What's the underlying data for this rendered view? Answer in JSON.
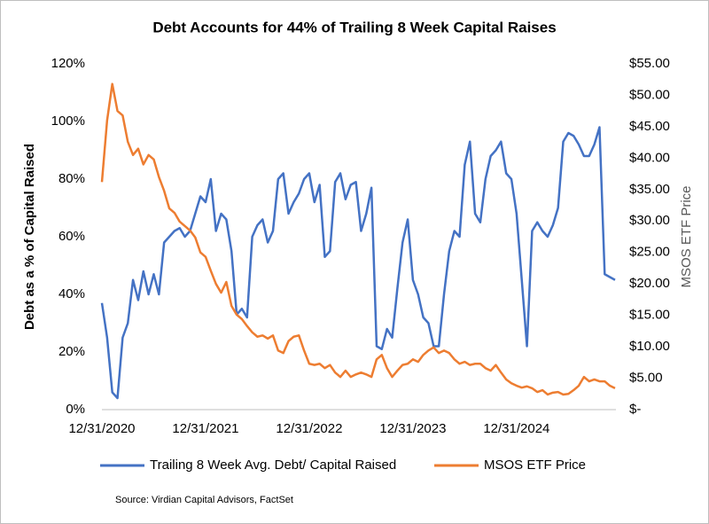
{
  "chart_data": {
    "type": "line",
    "title": "Debt Accounts for 44% of Trailing 8 Week Capital Raises",
    "y_label": "Debt as a % of Capital Raised",
    "y2_label": "MSOS ETF Price",
    "source": "Source: Virdian Capital Advisors, FactSet",
    "x": [
      2021,
      2021.05,
      2021.1,
      2021.15,
      2021.2,
      2021.25,
      2021.3,
      2021.35,
      2021.4,
      2021.45,
      2021.5,
      2021.55,
      2021.6,
      2021.65,
      2021.7,
      2021.75,
      2021.8,
      2021.85,
      2021.9,
      2021.95,
      2022,
      2022.05,
      2022.1,
      2022.15,
      2022.2,
      2022.25,
      2022.3,
      2022.35,
      2022.4,
      2022.45,
      2022.5,
      2022.55,
      2022.6,
      2022.65,
      2022.7,
      2022.75,
      2022.8,
      2022.85,
      2022.9,
      2022.95,
      2023,
      2023.05,
      2023.1,
      2023.15,
      2023.2,
      2023.25,
      2023.3,
      2023.35,
      2023.4,
      2023.45,
      2023.5,
      2023.55,
      2023.6,
      2023.65,
      2023.7,
      2023.75,
      2023.8,
      2023.85,
      2023.9,
      2023.95,
      2024,
      2024.05,
      2024.1,
      2024.15,
      2024.2,
      2024.25,
      2024.3,
      2024.35,
      2024.4,
      2024.45,
      2024.5,
      2024.55,
      2024.6,
      2024.65,
      2024.7,
      2024.75,
      2024.8,
      2024.85,
      2024.9,
      2024.95,
      2025,
      2025.05,
      2025.1,
      2025.15,
      2025.2,
      2025.25,
      2025.3,
      2025.35,
      2025.4,
      2025.45,
      2025.5,
      2025.55,
      2025.6,
      2025.65,
      2025.7,
      2025.75,
      2025.8,
      2025.85,
      2025.9,
      2025.95
    ],
    "xlim": [
      2021,
      2025.95
    ],
    "xticks": [
      {
        "value": 2021,
        "label": "12/31/2020"
      },
      {
        "value": 2022,
        "label": "12/31/2021"
      },
      {
        "value": 2023,
        "label": "12/31/2022"
      },
      {
        "value": 2024,
        "label": "12/31/2023"
      },
      {
        "value": 2025,
        "label": "12/31/2024"
      }
    ],
    "ylim": [
      0,
      120
    ],
    "yticks": [
      {
        "value": 0,
        "label": "0%"
      },
      {
        "value": 20,
        "label": "20%"
      },
      {
        "value": 40,
        "label": "40%"
      },
      {
        "value": 60,
        "label": "60%"
      },
      {
        "value": 80,
        "label": "80%"
      },
      {
        "value": 100,
        "label": "100%"
      },
      {
        "value": 120,
        "label": "120%"
      }
    ],
    "y2lim": [
      0,
      55
    ],
    "y2ticks": [
      {
        "value": 0,
        "label": "$-"
      },
      {
        "value": 5,
        "label": "$5.00"
      },
      {
        "value": 10,
        "label": "$10.00"
      },
      {
        "value": 15,
        "label": "$15.00"
      },
      {
        "value": 20,
        "label": "$20.00"
      },
      {
        "value": 25,
        "label": "$25.00"
      },
      {
        "value": 30,
        "label": "$30.00"
      },
      {
        "value": 35,
        "label": "$35.00"
      },
      {
        "value": 40,
        "label": "$40.00"
      },
      {
        "value": 45,
        "label": "$45.00"
      },
      {
        "value": 50,
        "label": "$50.00"
      },
      {
        "value": 55,
        "label": "$55.00"
      }
    ],
    "legend": "bottom",
    "series": [
      {
        "name": "Trailing 8 Week Avg. Debt/ Capital Raised",
        "color": "#4472c4",
        "axis": "y",
        "values": [
          37,
          25,
          6,
          4,
          25,
          30,
          45,
          38,
          48,
          40,
          47,
          40,
          58,
          60,
          62,
          63,
          60,
          62,
          68,
          74,
          72,
          80,
          62,
          68,
          66,
          55,
          33,
          35,
          32,
          60,
          64,
          66,
          58,
          62,
          80,
          82,
          68,
          72,
          75,
          80,
          82,
          72,
          78,
          53,
          55,
          79,
          82,
          73,
          78,
          79,
          62,
          68,
          77,
          22,
          21,
          28,
          25,
          42,
          58,
          66,
          45,
          40,
          32,
          30,
          22,
          22,
          40,
          55,
          62,
          60,
          85,
          93,
          68,
          65,
          80,
          88,
          90,
          93,
          82,
          80,
          68,
          45,
          22,
          62,
          65,
          62,
          60,
          64,
          70,
          93,
          96,
          95,
          92,
          88,
          88,
          92,
          98,
          47,
          46,
          45
        ]
      },
      {
        "name": "MSOS ETF Price",
        "color": "#ed7d31",
        "axis": "y2",
        "values": [
          36.2,
          46,
          51.8,
          47.5,
          46.8,
          42.6,
          40.5,
          41.5,
          39,
          40.5,
          39.8,
          37,
          34.8,
          32,
          31.3,
          29.9,
          29.2,
          28.5,
          27.4,
          25,
          24.3,
          22.1,
          20,
          18.6,
          20.3,
          16.5,
          15.1,
          14.4,
          13.3,
          12.3,
          11.6,
          11.8,
          11.3,
          11.8,
          9.4,
          9,
          10.9,
          11.6,
          11.8,
          9.4,
          7.3,
          7.1,
          7.3,
          6.6,
          7.1,
          5.9,
          5.2,
          6.2,
          5.2,
          5.6,
          5.9,
          5.6,
          5.2,
          8,
          8.7,
          6.6,
          5.2,
          6.2,
          7.1,
          7.3,
          8,
          7.6,
          8.7,
          9.4,
          9.9,
          9,
          9.4,
          9,
          8,
          7.3,
          7.6,
          7.1,
          7.3,
          7.3,
          6.6,
          6.2,
          7.1,
          5.9,
          4.8,
          4.2,
          3.8,
          3.5,
          3.7,
          3.4,
          2.8,
          3.1,
          2.4,
          2.7,
          2.8,
          2.4,
          2.5,
          3.1,
          3.8,
          5.2,
          4.5,
          4.8,
          4.5,
          4.5,
          3.8,
          3.4
        ]
      }
    ]
  }
}
